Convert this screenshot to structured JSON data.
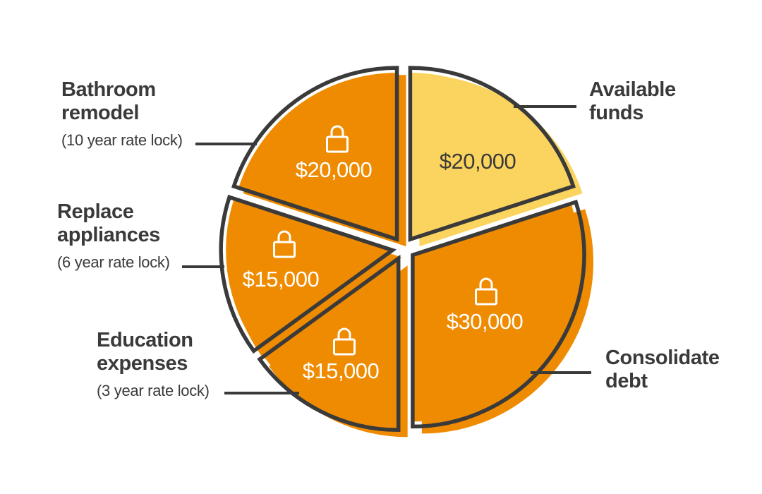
{
  "chart_data": {
    "type": "pie",
    "title": "",
    "legend_position": "none",
    "rotation_start": "top",
    "direction": "clockwise",
    "colors": {
      "orange": "#EF8B00",
      "yellow": "#FAD45E",
      "outline": "#3A3A3A",
      "value_text_on_orange": "#FFFFFF",
      "value_text_on_yellow": "#3A3A3A"
    },
    "slices": [
      {
        "id": "available-funds",
        "label": "Available funds",
        "sublabel": "",
        "value": 20000,
        "value_label": "$20,000",
        "color": "#FAD45E",
        "text_color": "#3A3A3A",
        "locked": false,
        "label_side": "right"
      },
      {
        "id": "consolidate-debt",
        "label": "Consolidate debt",
        "sublabel": "",
        "value": 30000,
        "value_label": "$30,000",
        "color": "#EF8B00",
        "text_color": "#FFFFFF",
        "locked": true,
        "label_side": "right"
      },
      {
        "id": "education-expenses",
        "label": "Education expenses",
        "sublabel": "(3 year rate lock)",
        "value": 15000,
        "value_label": "$15,000",
        "color": "#EF8B00",
        "text_color": "#FFFFFF",
        "locked": true,
        "label_side": "left"
      },
      {
        "id": "replace-appliances",
        "label": "Replace appliances",
        "sublabel": "(6 year rate lock)",
        "value": 15000,
        "value_label": "$15,000",
        "color": "#EF8B00",
        "text_color": "#FFFFFF",
        "locked": true,
        "label_side": "left"
      },
      {
        "id": "bathroom-remodel",
        "label": "Bathroom remodel",
        "sublabel": "(10 year rate lock)",
        "value": 20000,
        "value_label": "$20,000",
        "color": "#EF8B00",
        "text_color": "#FFFFFF",
        "locked": true,
        "label_side": "left"
      }
    ]
  }
}
